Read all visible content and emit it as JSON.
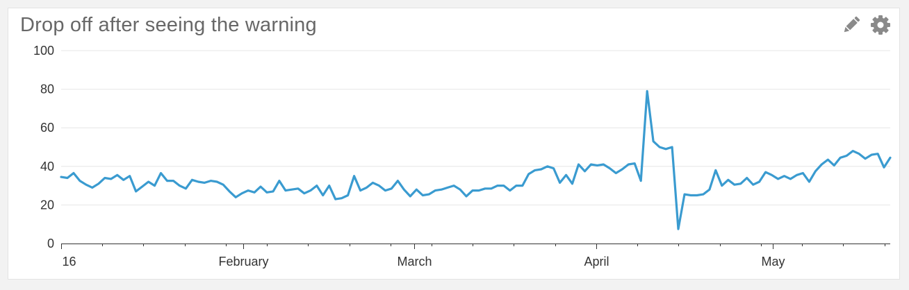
{
  "widget": {
    "title": "Drop off after seeing the warning"
  },
  "toolbar": {
    "edit_icon": "pencil-icon",
    "settings_icon": "gear-icon"
  },
  "colors": {
    "series": "#3a9bd0",
    "icon": "#8a8a8a",
    "grid": "#e6e6e6",
    "axis": "#333333"
  },
  "chart_data": {
    "type": "line",
    "title": "Drop off after seeing the warning",
    "xlabel": "",
    "ylabel": "",
    "ylim": [
      0,
      100
    ],
    "yticks": [
      0,
      20,
      40,
      60,
      80,
      100
    ],
    "x_tick_labels": [
      "16",
      "February",
      "March",
      "April",
      "May"
    ],
    "x_tick_dates": [
      "2016-01-01",
      "2016-02-01",
      "2016-03-01",
      "2016-04-01",
      "2016-05-01"
    ],
    "x_start": "2016-01-01",
    "x_end": "2016-05-21",
    "grid": true,
    "series": [
      {
        "values": [
          34.5,
          34,
          36.5,
          32.5,
          30.5,
          29,
          31,
          34,
          33.5,
          35.5,
          33,
          35,
          27,
          29.5,
          32,
          30,
          36.5,
          32.5,
          32.5,
          30,
          28.5,
          33,
          32,
          31.5,
          32.5,
          32,
          30.5,
          27,
          24,
          26,
          27.5,
          26.5,
          29.5,
          26.5,
          27,
          32.5,
          27.5,
          28,
          28.5,
          26,
          27.5,
          30,
          25,
          30,
          23,
          23.5,
          25,
          35,
          27.5,
          29,
          31.5,
          30,
          27.5,
          28.5,
          32.5,
          28,
          24.5,
          28,
          25,
          25.5,
          27.5,
          28,
          29,
          30,
          28,
          24.5,
          27.5,
          27.5,
          28.5,
          28.5,
          30,
          30,
          27.5,
          30,
          30,
          36,
          38,
          38.5,
          40,
          39,
          31.5,
          35.5,
          31,
          41,
          37.5,
          41,
          40.5,
          41,
          39,
          36.5,
          38.5,
          41,
          41.5,
          32.5,
          79,
          53,
          50,
          49,
          50,
          7.5,
          25.5,
          25,
          25,
          25.5,
          28,
          38,
          30,
          33,
          30.5,
          31,
          34,
          30.5,
          32,
          37,
          35.5,
          33.5,
          35,
          33.5,
          35.5,
          36.5,
          32,
          37.5,
          41,
          43.5,
          40.5,
          44.5,
          45.5,
          48,
          46.5,
          44,
          46,
          46.5,
          39.5,
          44.5
        ]
      }
    ]
  }
}
